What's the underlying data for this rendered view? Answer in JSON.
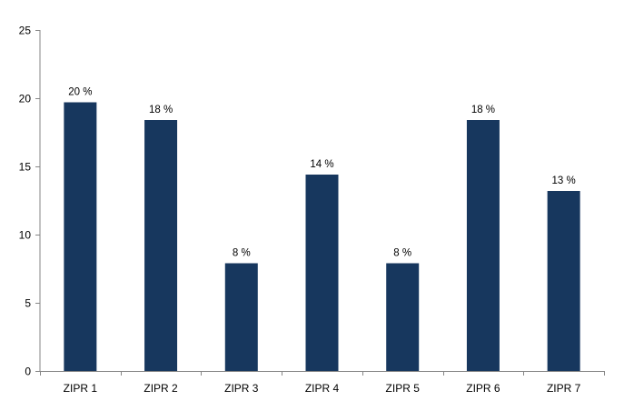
{
  "chart_data": {
    "type": "bar",
    "categories": [
      "ZIPR 1",
      "ZIPR 2",
      "ZIPR 3",
      "ZIPR 4",
      "ZIPR 5",
      "ZIPR 6",
      "ZIPR 7"
    ],
    "values": [
      19.7,
      18.4,
      7.9,
      14.4,
      7.9,
      18.4,
      13.2
    ],
    "data_labels": [
      "20 %",
      "18 %",
      "8 %",
      "14 %",
      "8 %",
      "18 %",
      "13 %"
    ],
    "yticks": [
      "0",
      "5",
      "10",
      "15",
      "20",
      "25"
    ],
    "ylim": [
      0,
      25
    ],
    "title": "",
    "xlabel": "",
    "ylabel": "",
    "grid": false,
    "legend": "none",
    "bar_color": "#17375e",
    "axis_color": "#868686"
  }
}
